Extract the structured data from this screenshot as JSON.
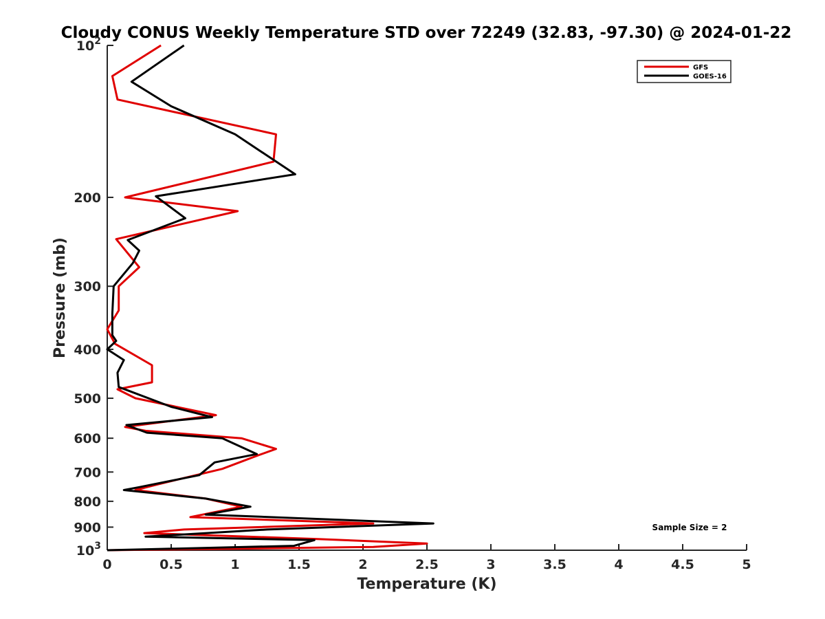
{
  "chart_data": {
    "type": "line",
    "title": "Cloudy CONUS Weekly Temperature STD over 72249 (32.83, -97.30) @ 2024-01-22",
    "xlabel": "Temperature (K)",
    "ylabel": "Pressure (mb)",
    "xlim": [
      0,
      5
    ],
    "ylim": [
      1000,
      100
    ],
    "yscale": "log",
    "x_ticks": [
      0,
      0.5,
      1,
      1.5,
      2,
      2.5,
      3,
      3.5,
      4,
      4.5,
      5
    ],
    "x_tick_labels": [
      "0",
      "0.5",
      "1",
      "1.5",
      "2",
      "2.5",
      "3",
      "3.5",
      "4",
      "4.5",
      "5"
    ],
    "y_ticks": [
      100,
      200,
      300,
      400,
      500,
      600,
      700,
      800,
      900,
      1000
    ],
    "y_tick_labels": [
      {
        "base": "10",
        "exp": "2"
      },
      {
        "base": "200",
        "exp": ""
      },
      {
        "base": "300",
        "exp": ""
      },
      {
        "base": "400",
        "exp": ""
      },
      {
        "base": "500",
        "exp": ""
      },
      {
        "base": "600",
        "exp": ""
      },
      {
        "base": "700",
        "exp": ""
      },
      {
        "base": "800",
        "exp": ""
      },
      {
        "base": "900",
        "exp": ""
      },
      {
        "base": "10",
        "exp": "3"
      }
    ],
    "grid": false,
    "legend_position": "top-right",
    "annotation": "Sample Size = 2",
    "series": [
      {
        "name": "GFS",
        "color": "#e00000",
        "points": [
          [
            0.42,
            100
          ],
          [
            0.04,
            115
          ],
          [
            0.08,
            128
          ],
          [
            1.32,
            150
          ],
          [
            1.3,
            170
          ],
          [
            0.14,
            200
          ],
          [
            1.02,
            213
          ],
          [
            0.07,
            242
          ],
          [
            0.25,
            275
          ],
          [
            0.09,
            300
          ],
          [
            0.09,
            335
          ],
          [
            0.0,
            365
          ],
          [
            0.06,
            390
          ],
          [
            0.35,
            430
          ],
          [
            0.35,
            465
          ],
          [
            0.08,
            480
          ],
          [
            0.22,
            500
          ],
          [
            0.85,
            540
          ],
          [
            0.14,
            570
          ],
          [
            0.3,
            580
          ],
          [
            1.05,
            600
          ],
          [
            1.32,
            630
          ],
          [
            1.17,
            650
          ],
          [
            0.9,
            690
          ],
          [
            0.4,
            740
          ],
          [
            0.22,
            760
          ],
          [
            0.77,
            790
          ],
          [
            1.05,
            820
          ],
          [
            0.65,
            860
          ],
          [
            2.08,
            885
          ],
          [
            0.6,
            910
          ],
          [
            0.29,
            925
          ],
          [
            1.63,
            950
          ],
          [
            2.5,
            970
          ],
          [
            2.08,
            985
          ],
          [
            0.0,
            1000
          ]
        ]
      },
      {
        "name": "GOES-16",
        "color": "#000000",
        "points": [
          [
            0.6,
            100
          ],
          [
            0.19,
            118
          ],
          [
            0.5,
            132
          ],
          [
            1.0,
            150
          ],
          [
            1.47,
            180
          ],
          [
            0.38,
            199
          ],
          [
            0.61,
            220
          ],
          [
            0.16,
            243
          ],
          [
            0.25,
            255
          ],
          [
            0.2,
            270
          ],
          [
            0.05,
            300
          ],
          [
            0.04,
            340
          ],
          [
            0.04,
            375
          ],
          [
            0.07,
            385
          ],
          [
            0.0,
            400
          ],
          [
            0.13,
            420
          ],
          [
            0.08,
            445
          ],
          [
            0.09,
            475
          ],
          [
            0.5,
            520
          ],
          [
            0.82,
            545
          ],
          [
            0.15,
            565
          ],
          [
            0.31,
            585
          ],
          [
            0.9,
            600
          ],
          [
            1.17,
            645
          ],
          [
            0.84,
            670
          ],
          [
            0.72,
            710
          ],
          [
            0.25,
            750
          ],
          [
            0.13,
            760
          ],
          [
            0.77,
            790
          ],
          [
            1.12,
            820
          ],
          [
            0.77,
            850
          ],
          [
            2.55,
            885
          ],
          [
            1.25,
            910
          ],
          [
            0.3,
            940
          ],
          [
            1.62,
            955
          ],
          [
            1.46,
            980
          ],
          [
            0.0,
            1000
          ]
        ]
      }
    ]
  }
}
